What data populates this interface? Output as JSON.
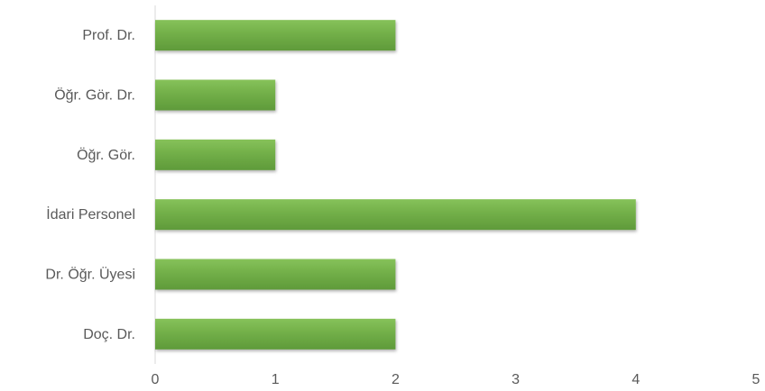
{
  "chart_data": {
    "type": "bar",
    "orientation": "horizontal",
    "categories": [
      "Prof. Dr.",
      "Öğr. Gör. Dr.",
      "Öğr. Gör.",
      "İdari Personel",
      "Dr. Öğr. Üyesi",
      "Doç. Dr."
    ],
    "values": [
      2,
      1,
      1,
      4,
      2,
      2
    ],
    "xlim": [
      0,
      5
    ],
    "xticks": [
      "0",
      "1",
      "2",
      "3",
      "4",
      "5"
    ],
    "title": "",
    "xlabel": "",
    "ylabel": "",
    "grid": false,
    "legend": "none",
    "bar_color": "#70AD47"
  }
}
